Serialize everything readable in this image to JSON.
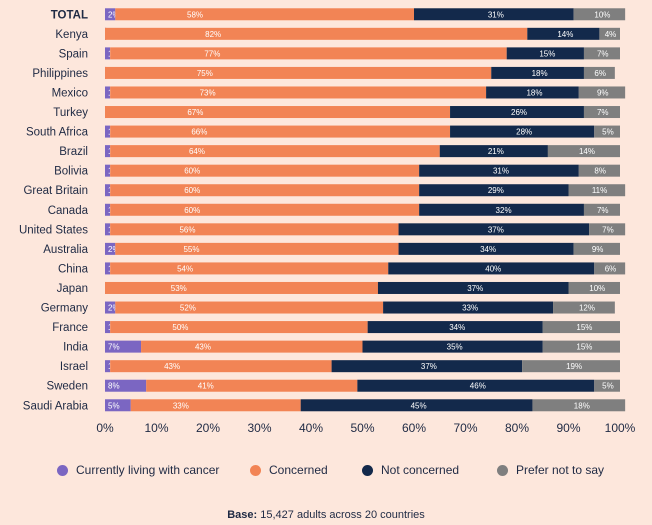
{
  "chart_data": {
    "type": "bar",
    "orientation": "horizontal",
    "stacked": true,
    "categories": [
      "TOTAL",
      "Kenya",
      "Spain",
      "Philippines",
      "Mexico",
      "Turkey",
      "South Africa",
      "Brazil",
      "Bolivia",
      "Great Britain",
      "Canada",
      "United States",
      "Australia",
      "China",
      "Japan",
      "Germany",
      "France",
      "India",
      "Israel",
      "Sweden",
      "Saudi Arabia"
    ],
    "series": [
      {
        "name": "Currently living with cancer",
        "color": "#7b66c2",
        "values": [
          2,
          0,
          1,
          0,
          1,
          0,
          1,
          1,
          1,
          1,
          1,
          1,
          2,
          1,
          0,
          2,
          1,
          7,
          1,
          8,
          5
        ]
      },
      {
        "name": "Concerned",
        "color": "#f28455",
        "values": [
          58,
          82,
          77,
          75,
          73,
          67,
          66,
          64,
          60,
          60,
          60,
          56,
          55,
          54,
          53,
          52,
          50,
          43,
          43,
          41,
          33
        ]
      },
      {
        "name": "Not concerned",
        "color": "#13294b",
        "values": [
          31,
          14,
          15,
          18,
          18,
          26,
          28,
          21,
          31,
          29,
          32,
          37,
          34,
          40,
          37,
          33,
          34,
          35,
          37,
          46,
          45
        ]
      },
      {
        "name": "Prefer not to say",
        "color": "#7f7f7f",
        "values": [
          10,
          4,
          7,
          6,
          9,
          7,
          5,
          14,
          8,
          11,
          7,
          7,
          9,
          6,
          10,
          12,
          15,
          15,
          19,
          5,
          18
        ]
      }
    ],
    "x_ticks": [
      "0%",
      "10%",
      "20%",
      "30%",
      "40%",
      "50%",
      "60%",
      "70%",
      "80%",
      "90%",
      "100%"
    ],
    "xlim": [
      0,
      100
    ],
    "legend_position": "bottom",
    "grid": false
  },
  "footer": {
    "base_label": "Base:",
    "base_text": " 15,427 adults across 20 countries"
  }
}
